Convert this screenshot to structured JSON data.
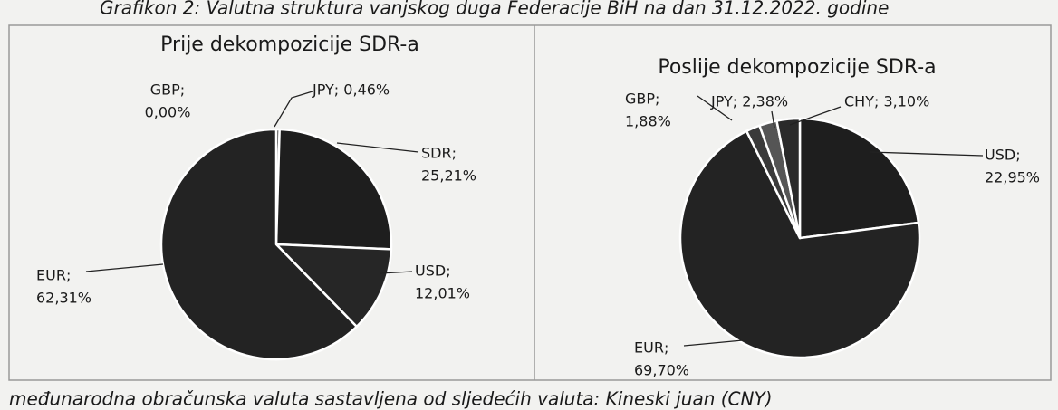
{
  "caption": "Grafikon 2: Valutna struktura vanjskog duga Federacije BiH na dan 31.12.2022. godine",
  "footnote": "međunarodna obračunska valuta sastavljena od sljedećih valuta: Kineski juan (CNY)",
  "chart_data": [
    {
      "type": "pie",
      "title": "Prije dekompozicije SDR-a",
      "categories": [
        "GBP",
        "JPY",
        "SDR",
        "USD",
        "EUR"
      ],
      "values": [
        0.0,
        0.46,
        25.21,
        12.01,
        62.31
      ],
      "value_labels": [
        [
          "GBP;",
          "0,00%"
        ],
        [
          "JPY; 0,46%"
        ],
        [
          "SDR;",
          "25,21%"
        ],
        [
          "USD;",
          "12,01%"
        ],
        [
          "EUR;",
          "62,31%"
        ]
      ],
      "colors": [
        "#2a2a2a",
        "#2a2a2a",
        "#1e1e1e",
        "#262626",
        "#232323"
      ]
    },
    {
      "type": "pie",
      "title": "Poslije dekompozicije SDR-a",
      "categories": [
        "USD",
        "EUR",
        "GBP",
        "JPY",
        "CHY"
      ],
      "values": [
        22.95,
        69.7,
        1.88,
        2.38,
        3.1
      ],
      "value_labels": [
        [
          "USD;",
          "22,95%"
        ],
        [
          "EUR;",
          "69,70%"
        ],
        [
          "GBP;",
          "1,88%"
        ],
        [
          "JPY; 2,38%"
        ],
        [
          "CHY; 3,10%"
        ]
      ],
      "colors": [
        "#1e1e1e",
        "#232323",
        "#3a3a3a",
        "#555555",
        "#2a2a2a"
      ]
    }
  ]
}
